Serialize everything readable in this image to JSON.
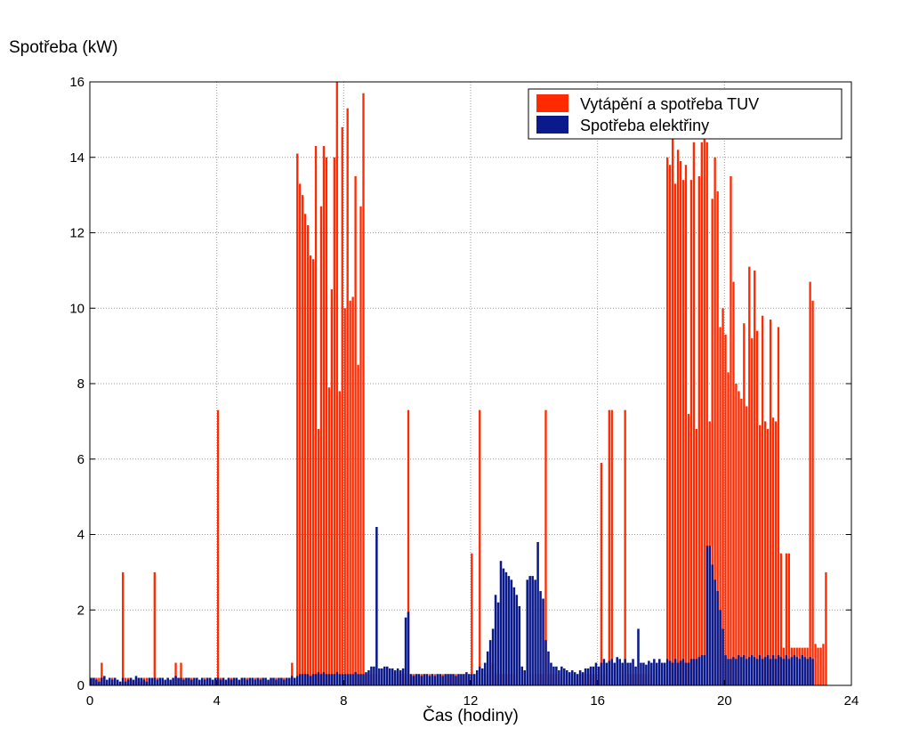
{
  "chart_data": {
    "type": "bar",
    "title": "",
    "xlabel": "Čas (hodiny)",
    "ylabel": "Spotřeba (kW)",
    "xlim": [
      0,
      24
    ],
    "ylim": [
      0,
      16
    ],
    "x_ticks": [
      "0",
      "4",
      "8",
      "12",
      "16",
      "20",
      "24"
    ],
    "y_ticks": [
      "0",
      "2",
      "4",
      "6",
      "8",
      "10",
      "12",
      "14",
      "16"
    ],
    "grid": true,
    "legend_position": "top-right",
    "x_step_hours": 0.0833,
    "series": [
      {
        "name": "Vytápění a spotřeba TUV",
        "color": "#ff2a00",
        "values": [
          0.2,
          0.2,
          0.2,
          0.2,
          0.6,
          0.2,
          0.1,
          0.1,
          0.2,
          0.2,
          0.1,
          0.1,
          3.0,
          0.2,
          0.2,
          0.2,
          0.1,
          0.2,
          0.1,
          0.1,
          0.2,
          0.2,
          0.2,
          0.1,
          3.0,
          0.2,
          0.2,
          0.1,
          0.1,
          0.2,
          0.1,
          0.2,
          0.6,
          0.2,
          0.6,
          0.2,
          0.2,
          0.2,
          0.2,
          0.1,
          0.2,
          0.1,
          0.1,
          0.2,
          0.2,
          0.2,
          0.1,
          0.2,
          7.3,
          0.2,
          0.2,
          0.1,
          0.2,
          0.2,
          0.2,
          0.2,
          0.1,
          0.2,
          0.2,
          0.2,
          0.1,
          0.1,
          0.2,
          0.2,
          0.2,
          0.2,
          0.2,
          0.1,
          0.2,
          0.2,
          0.2,
          0.1,
          0.2,
          0.2,
          0.2,
          0.1,
          0.6,
          0.2,
          14.1,
          13.3,
          13.0,
          12.5,
          12.2,
          11.4,
          11.3,
          14.3,
          6.8,
          12.7,
          14.3,
          14.0,
          7.9,
          10.5,
          14.0,
          16.0,
          7.8,
          14.8,
          10.0,
          15.3,
          10.2,
          10.3,
          13.5,
          8.5,
          12.7,
          15.7,
          0.3,
          0.3,
          0.3,
          0.3,
          0.3,
          0.3,
          0.3,
          0.3,
          0.3,
          0.3,
          0.3,
          0.3,
          0.3,
          0.3,
          0.3,
          0.3,
          7.3,
          0.3,
          0.3,
          0.3,
          0.3,
          0.3,
          0.3,
          0.3,
          0.3,
          0.3,
          0.3,
          0.3,
          0.3,
          0.3,
          0.3,
          0.3,
          0.3,
          0.3,
          0.3,
          0.3,
          0.3,
          0.3,
          0.3,
          0.3,
          3.5,
          0.3,
          0.3,
          7.3,
          0.3,
          0.3,
          0.3,
          0.6,
          0.6,
          0.3,
          0.3,
          0.3,
          0.3,
          0.3,
          0.3,
          0.3,
          0.3,
          0.3,
          0.3,
          0.3,
          0.3,
          0.3,
          0.3,
          0.3,
          0.3,
          0.3,
          0.3,
          0.3,
          7.3,
          0.3,
          0.3,
          0.3,
          0.3,
          0.3,
          0.3,
          0.3,
          0.3,
          0.3,
          0.3,
          0.3,
          0.3,
          0.3,
          0.3,
          0.3,
          0.3,
          0.3,
          0.3,
          0.3,
          0.3,
          5.9,
          0.3,
          0.3,
          7.3,
          7.3,
          0.3,
          0.3,
          0.3,
          0.3,
          7.3,
          0.3,
          0.3,
          0.3,
          0.3,
          0.3,
          0.3,
          0.3,
          0.3,
          0.3,
          0.3,
          0.3,
          0.3,
          0.3,
          0.3,
          0.3,
          14.0,
          13.8,
          14.5,
          13.3,
          14.2,
          13.9,
          13.4,
          13.8,
          7.2,
          13.4,
          14.4,
          6.8,
          13.5,
          14.4,
          14.8,
          14.4,
          7.0,
          12.9,
          14.0,
          13.1,
          9.5,
          10.0,
          9.3,
          8.3,
          13.5,
          10.7,
          8.0,
          7.8,
          7.6,
          9.6,
          7.4,
          11.1,
          9.2,
          11.0,
          9.4,
          6.9,
          9.8,
          7.0,
          6.8,
          9.7,
          7.1,
          7.0,
          9.5,
          3.5,
          1.0,
          3.5,
          3.5,
          1.0,
          1.0,
          1.0,
          1.0,
          1.0,
          1.0,
          1.0,
          10.7,
          10.2,
          1.1,
          1.0,
          1.0,
          1.1,
          3.0
        ]
      },
      {
        "name": "Spotřeba elektřiny",
        "color": "#0a1a8c",
        "values": [
          0.2,
          0.2,
          0.15,
          0.1,
          0.2,
          0.25,
          0.15,
          0.2,
          0.15,
          0.2,
          0.15,
          0.1,
          0.2,
          0.1,
          0.15,
          0.2,
          0.15,
          0.25,
          0.2,
          0.2,
          0.15,
          0.1,
          0.2,
          0.2,
          0.2,
          0.15,
          0.2,
          0.2,
          0.15,
          0.2,
          0.15,
          0.2,
          0.25,
          0.2,
          0.2,
          0.15,
          0.2,
          0.2,
          0.15,
          0.2,
          0.2,
          0.15,
          0.2,
          0.15,
          0.2,
          0.2,
          0.15,
          0.2,
          0.2,
          0.15,
          0.2,
          0.15,
          0.2,
          0.15,
          0.2,
          0.2,
          0.15,
          0.2,
          0.2,
          0.15,
          0.2,
          0.2,
          0.15,
          0.2,
          0.15,
          0.2,
          0.2,
          0.15,
          0.2,
          0.2,
          0.15,
          0.2,
          0.2,
          0.15,
          0.2,
          0.2,
          0.25,
          0.2,
          0.25,
          0.3,
          0.3,
          0.3,
          0.3,
          0.25,
          0.3,
          0.3,
          0.35,
          0.3,
          0.35,
          0.3,
          0.3,
          0.3,
          0.3,
          0.35,
          0.3,
          0.3,
          0.3,
          0.3,
          0.3,
          0.3,
          0.35,
          0.3,
          0.3,
          0.3,
          0.35,
          0.4,
          0.5,
          0.5,
          4.2,
          0.45,
          0.45,
          0.5,
          0.5,
          0.45,
          0.45,
          0.4,
          0.45,
          0.4,
          0.45,
          1.8,
          1.95,
          0.3,
          0.25,
          0.3,
          0.3,
          0.25,
          0.3,
          0.3,
          0.25,
          0.3,
          0.25,
          0.3,
          0.3,
          0.25,
          0.3,
          0.3,
          0.3,
          0.3,
          0.25,
          0.3,
          0.3,
          0.3,
          0.35,
          0.3,
          0.3,
          0.3,
          0.4,
          0.5,
          0.45,
          0.6,
          0.9,
          1.2,
          1.5,
          2.4,
          2.2,
          3.3,
          3.1,
          3.0,
          2.9,
          2.8,
          2.6,
          2.4,
          2.1,
          0.5,
          0.4,
          2.8,
          2.9,
          2.9,
          2.8,
          3.8,
          2.5,
          2.3,
          1.2,
          0.9,
          0.6,
          0.5,
          0.5,
          0.4,
          0.5,
          0.45,
          0.4,
          0.35,
          0.4,
          0.35,
          0.3,
          0.4,
          0.35,
          0.45,
          0.45,
          0.5,
          0.5,
          0.6,
          0.5,
          0.6,
          0.7,
          0.6,
          0.65,
          0.7,
          0.6,
          0.75,
          0.7,
          0.6,
          0.7,
          0.6,
          0.6,
          0.7,
          0.5,
          1.5,
          0.6,
          0.6,
          0.55,
          0.65,
          0.6,
          0.7,
          0.6,
          0.7,
          0.6,
          0.6,
          0.7,
          0.65,
          0.6,
          0.7,
          0.6,
          0.65,
          0.7,
          0.6,
          0.6,
          0.7,
          0.7,
          0.7,
          0.75,
          0.8,
          0.8,
          3.7,
          3.7,
          3.2,
          2.8,
          2.5,
          2.0,
          1.5,
          0.8,
          0.7,
          0.7,
          0.75,
          0.7,
          0.8,
          0.75,
          0.8,
          0.7,
          0.75,
          0.8,
          0.75,
          0.7,
          0.8,
          0.7,
          0.75,
          0.8,
          0.7,
          0.8,
          0.7,
          0.8,
          0.75,
          0.7,
          0.8,
          0.7,
          0.75,
          0.8,
          0.75,
          0.7,
          0.8,
          0.75,
          0.7,
          0.75,
          0.7
        ]
      }
    ]
  }
}
